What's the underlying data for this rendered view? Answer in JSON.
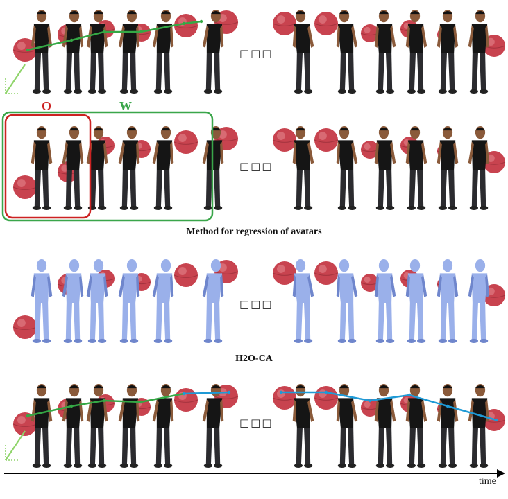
{
  "captions": {
    "method": "Method for regression of avatars",
    "h2o": "H2O-CA"
  },
  "labels": {
    "o": "O",
    "w": "W",
    "time": "time"
  },
  "ellipsis": "□□□",
  "colors": {
    "ball": "#c8434f",
    "ball_highlight": "#e58a92",
    "person_shirt": "#151515",
    "person_pants": "#2b2b2f",
    "skin": "#8a5a3a",
    "avatar": "#9ab0ea",
    "avatar_shade": "#6f86cc",
    "traj_green": "#35a845",
    "traj_light_green": "#8fd46a",
    "traj_blue": "#1f9ad6",
    "box_red": "#cc2222",
    "box_green": "#3aa64a"
  }
}
